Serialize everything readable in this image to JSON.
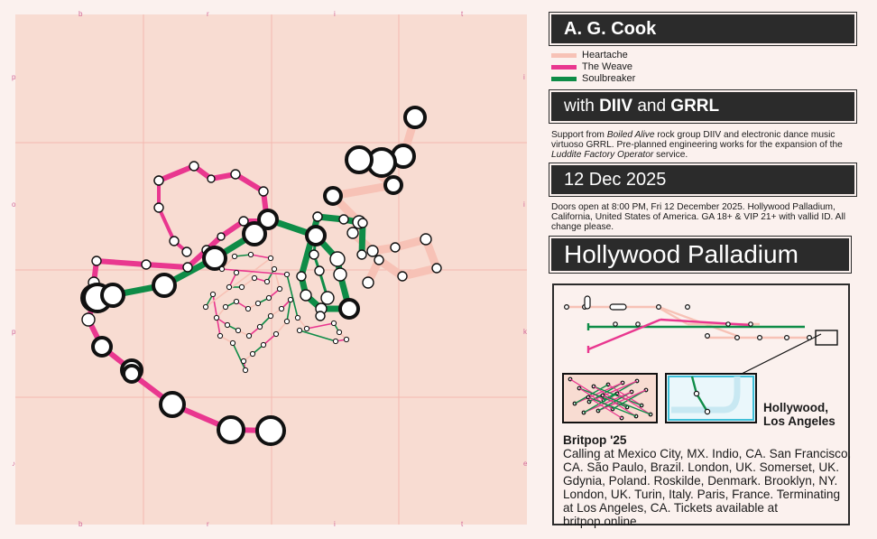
{
  "poster": {
    "artist": "A. G. Cook",
    "legend": [
      {
        "name": "Heartache",
        "color": "#f7c2b6"
      },
      {
        "name": "The Weave",
        "color": "#e9378f"
      },
      {
        "name": "Soulbreaker",
        "color": "#0e8c47"
      }
    ],
    "support_prefix": "with",
    "support_acts": [
      "DIIV",
      "GRRL"
    ],
    "support_joiner": "and",
    "support_desc": {
      "t1": "Support from ",
      "i1": "Boiled Alive",
      "t2": " rock group DIIV and electronic dance music virtuoso GRRL. Pre-planned engineering works for the expansion of the ",
      "i2": "Luddite Factory Operator",
      "t3": " service."
    },
    "date": "12 Dec 2025",
    "doors": "Doors open at 8:00 PM, Fri 12 December 2025. Hollywood Palladium, California, United States of America. GA 18+ & VIP 21+ with vallid ID. All change please.",
    "venue": "Hollywood Palladium",
    "venue_city": [
      "Hollywood,",
      "Los Angeles"
    ],
    "tour_title": "Britpop '25",
    "tour_text": "Calling at Mexico City, MX. Indio, CA. San Francisco, CA. São Paulo, Brazil. London, UK. Somerset, UK. Gdynia, Poland. Roskilde, Denmark. Brooklyn, NY. London, UK. Turin, Italy. Paris, France. Terminating at Los Angeles, CA. Tickets available at britpop.online"
  },
  "map": {
    "col_labels": [
      "b",
      "r",
      "i",
      "t"
    ],
    "row_labels_left": [
      "p",
      "o",
      "p",
      "♪"
    ],
    "row_labels_right": [
      "i",
      "i",
      "k",
      "e"
    ]
  }
}
